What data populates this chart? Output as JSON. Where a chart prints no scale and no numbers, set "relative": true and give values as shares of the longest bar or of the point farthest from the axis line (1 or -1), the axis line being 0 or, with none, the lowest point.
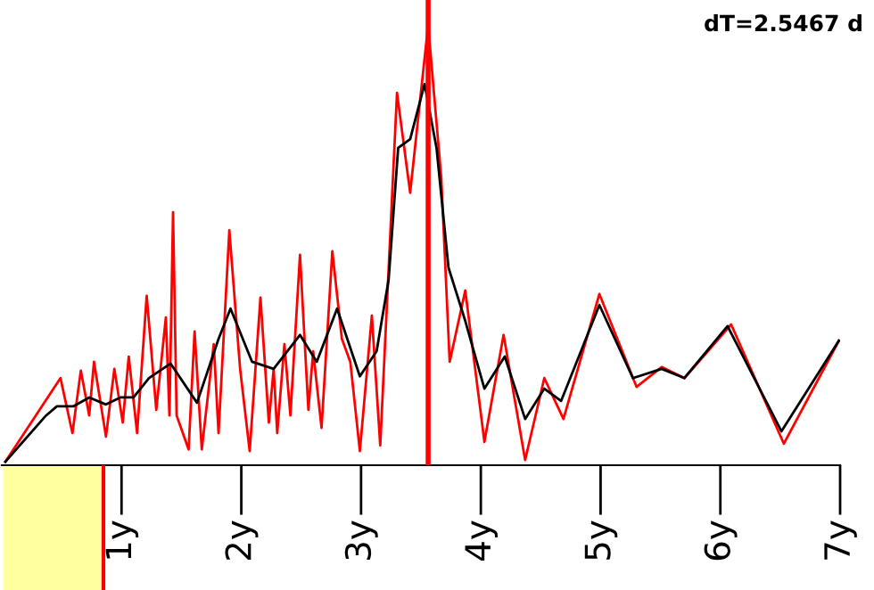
{
  "chart_data": {
    "type": "line",
    "relative": true,
    "annotations": [
      "dT=2.5467 d"
    ],
    "xlim": [
      0,
      7
    ],
    "xticks": [
      {
        "value": 1,
        "label": "1y"
      },
      {
        "value": 2,
        "label": "2y"
      },
      {
        "value": 3,
        "label": "3y"
      },
      {
        "value": 4,
        "label": "4y"
      },
      {
        "value": 5,
        "label": "5y"
      },
      {
        "value": 6,
        "label": "6y"
      },
      {
        "value": 7,
        "label": "7y"
      }
    ],
    "grid": false,
    "legend": false,
    "marker": "none",
    "line_style": "solid",
    "ref_lines": [
      {
        "axis": "x",
        "value": 3.56,
        "color": "#ff0000",
        "line_style": "solid"
      }
    ],
    "series": [
      {
        "color": "#ff0000",
        "x": [
          0.03,
          0.49,
          0.59,
          0.66,
          0.73,
          0.77,
          0.87,
          0.94,
          1.01,
          1.06,
          1.13,
          1.21,
          1.29,
          1.37,
          1.4,
          1.43,
          1.46,
          1.56,
          1.61,
          1.67,
          1.77,
          1.81,
          1.9,
          1.99,
          2.07,
          2.16,
          2.23,
          2.27,
          2.3,
          2.36,
          2.41,
          2.49,
          2.56,
          2.6,
          2.67,
          2.76,
          2.84,
          2.91,
          2.99,
          3.09,
          3.16,
          3.3,
          3.41,
          3.56,
          3.67,
          3.74,
          3.87,
          4.03,
          4.19,
          4.37,
          4.53,
          4.69,
          4.99,
          5.3,
          5.51,
          5.7,
          6.09,
          6.53,
          6.99
        ],
        "values": [
          0.008,
          0.198,
          0.073,
          0.215,
          0.113,
          0.235,
          0.065,
          0.219,
          0.097,
          0.247,
          0.073,
          0.385,
          0.126,
          0.336,
          0.113,
          0.575,
          0.113,
          0.036,
          0.304,
          0.036,
          0.275,
          0.073,
          0.534,
          0.219,
          0.032,
          0.381,
          0.097,
          0.219,
          0.073,
          0.275,
          0.113,
          0.478,
          0.126,
          0.259,
          0.085,
          0.486,
          0.287,
          0.235,
          0.032,
          0.34,
          0.045,
          0.846,
          0.619,
          1.0,
          0.652,
          0.235,
          0.397,
          0.053,
          0.296,
          0.012,
          0.198,
          0.105,
          0.389,
          0.178,
          0.223,
          0.198,
          0.32,
          0.049,
          0.283
        ]
      },
      {
        "color": "#000000",
        "x": [
          0.03,
          0.37,
          0.46,
          0.6,
          0.73,
          0.87,
          0.99,
          1.1,
          1.23,
          1.41,
          1.63,
          1.81,
          1.91,
          2.09,
          2.27,
          2.49,
          2.63,
          2.8,
          2.99,
          3.13,
          3.23,
          3.31,
          3.41,
          3.53,
          3.63,
          3.73,
          3.87,
          4.03,
          4.2,
          4.37,
          4.53,
          4.67,
          4.99,
          5.27,
          5.51,
          5.7,
          6.06,
          6.51,
          6.99
        ],
        "values": [
          0.008,
          0.113,
          0.134,
          0.134,
          0.154,
          0.138,
          0.154,
          0.154,
          0.198,
          0.231,
          0.142,
          0.287,
          0.356,
          0.235,
          0.219,
          0.296,
          0.235,
          0.356,
          0.202,
          0.259,
          0.421,
          0.721,
          0.741,
          0.866,
          0.721,
          0.449,
          0.328,
          0.174,
          0.247,
          0.105,
          0.174,
          0.146,
          0.364,
          0.198,
          0.219,
          0.198,
          0.316,
          0.077,
          0.283
        ]
      }
    ]
  }
}
